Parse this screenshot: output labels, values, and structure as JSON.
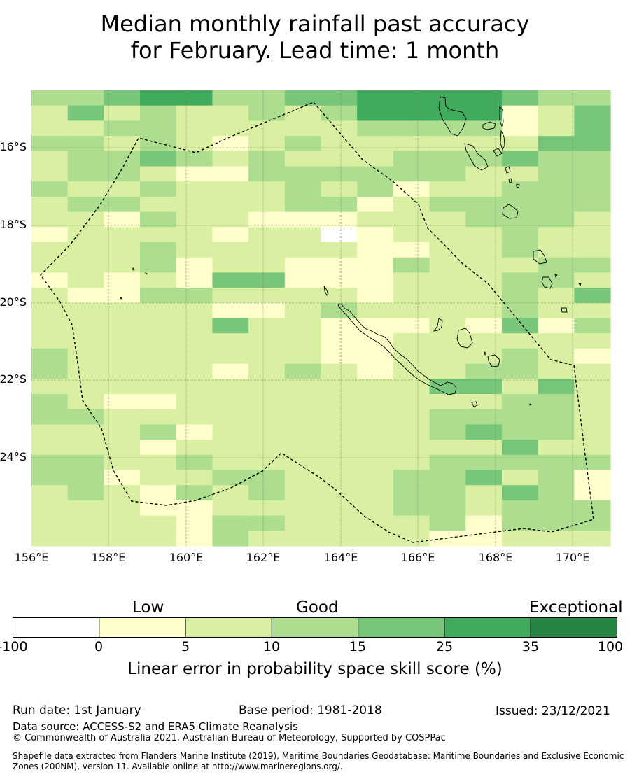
{
  "title": {
    "line1": "Median monthly rainfall past accuracy",
    "line2": "for February. Lead time: 1 month"
  },
  "map": {
    "lat_labels": [
      "16°S",
      "18°S",
      "20°S",
      "22°S",
      "24°S"
    ],
    "lon_labels": [
      "156°E",
      "158°E",
      "160°E",
      "162°E",
      "164°E",
      "166°E",
      "168°E",
      "170°E"
    ],
    "legend_categories": [
      "Low",
      "Good",
      "Exceptional"
    ],
    "skill_grid": [
      "3345533445555433",
      "2423223235555124",
      "2233222223333124",
      "3323212322222244",
      "2334323222333433",
      "2332113333332233",
      "3223222323122333",
      "2332222331233333",
      "2213221112223332",
      "1222212201222322",
      "2223222221122322",
      "2223122111322233",
      "1212144111222332",
      "2113322221222324",
      "2222211232222322",
      "2222242211121413",
      "2222222211222222",
      "3222222211222321",
      "3222212321223322",
      "2222222222244242",
      "3211222222222332",
      "3322222222233332",
      "2223122222234332",
      "2221222222222422",
      "3322322222233333",
      "3312233222334231",
      "2321323222332431",
      "2221122222332333",
      "2222133222231333",
      "2222132222211222"
    ]
  },
  "colorbar": {
    "ticks": [
      "-100",
      "0",
      "5",
      "10",
      "15",
      "25",
      "35",
      "100"
    ],
    "colors": [
      "#ffffff",
      "#ffffcc",
      "#d9f0a3",
      "#addd8e",
      "#78c679",
      "#41ab5d",
      "#238443"
    ],
    "title": "Linear error in probability space skill score (%)"
  },
  "footer": {
    "run_date": "Run date: 1st January",
    "base_period": "Base period: 1981-2018",
    "issued": "Issued: 23/12/2021",
    "data_source": "Data source: ACCESS-S2 and ERA5 Climate Reanalysis",
    "copyright": "© Commonwealth of Australia 2021, Australian Bureau of Meteorology, Supported by COSPPac",
    "shapefile_note": "Shapefile data extracted from Flanders Marine Institute (2019), Maritime Boundaries Geodatabase: Maritime Boundaries and Exclusive Economic Zones (200NM), version 11. Available online at http://www.marineregions.org/."
  }
}
